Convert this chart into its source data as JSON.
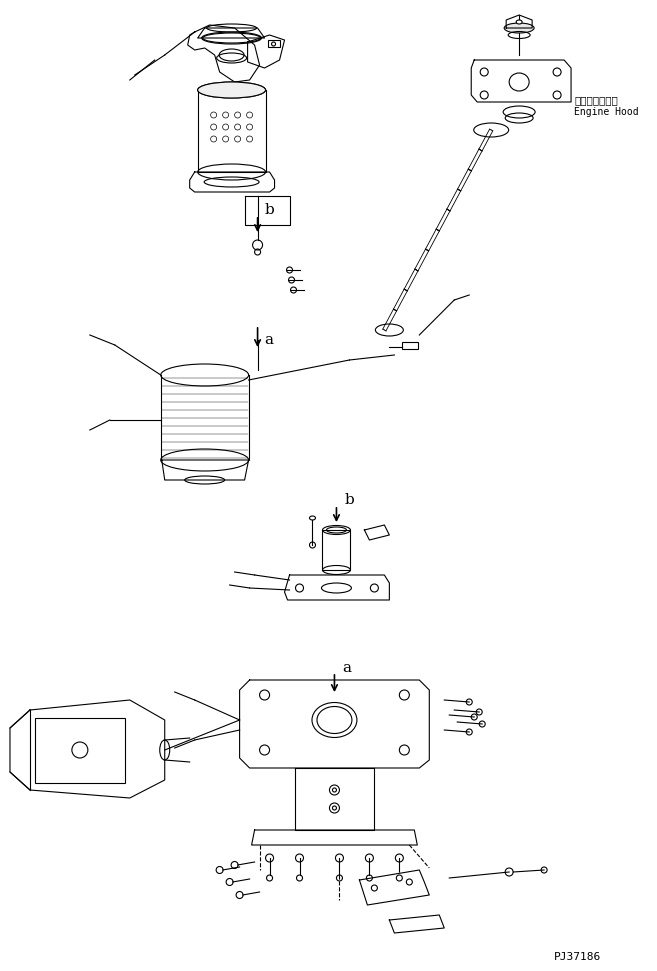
{
  "background_color": "#ffffff",
  "line_color": "#000000",
  "text_color": "#000000",
  "part_number": "PJ37186",
  "label_engine_hood_jp": "エンジンフード",
  "label_engine_hood_en": "Engine Hood",
  "label_a1": "a",
  "label_b1": "b",
  "label_a2": "a",
  "label_b2": "b",
  "figsize": [
    6.57,
    9.71
  ],
  "dpi": 100
}
